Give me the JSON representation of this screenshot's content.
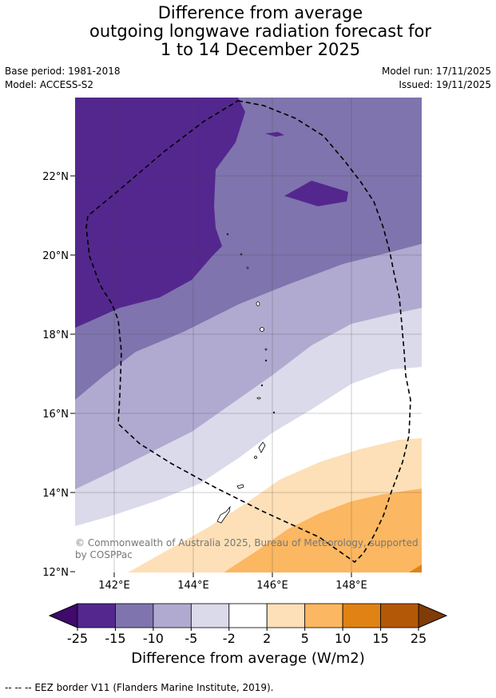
{
  "title": {
    "line1": "Difference from average",
    "line2": "outgoing longwave radiation forecast for",
    "line3": "1 to 14 December 2025"
  },
  "meta": {
    "base_period": "Base period: 1981-2018",
    "model": "Model: ACCESS-S2",
    "model_run": "Model run: 17/11/2025",
    "issued": "Issued: 19/11/2025"
  },
  "map": {
    "lat_labels": [
      "22°N",
      "20°N",
      "18°N",
      "16°N",
      "14°N",
      "12°N"
    ],
    "lon_labels": [
      "142°E",
      "144°E",
      "146°E",
      "148°E"
    ],
    "copyright": "© Commonwealth of Australia 2025, Bureau of Meteorology, supported by COSPPac",
    "eez_style": "dashed black line"
  },
  "colorbar": {
    "ticks": [
      "-25",
      "-15",
      "-10",
      "-5",
      "-2",
      "2",
      "5",
      "10",
      "15",
      "25"
    ],
    "colors": [
      "#3f0a6b",
      "#54278f",
      "#7f74ad",
      "#b0aad0",
      "#dadaeb",
      "#ffffff",
      "#fde0b7",
      "#fbb761",
      "#e08214",
      "#b35806",
      "#7f3b08"
    ],
    "label": "Difference from average (W/m2)"
  },
  "footnote": "--  --  -- EEZ border V11 (Flanders Marine Institute, 2019)."
}
